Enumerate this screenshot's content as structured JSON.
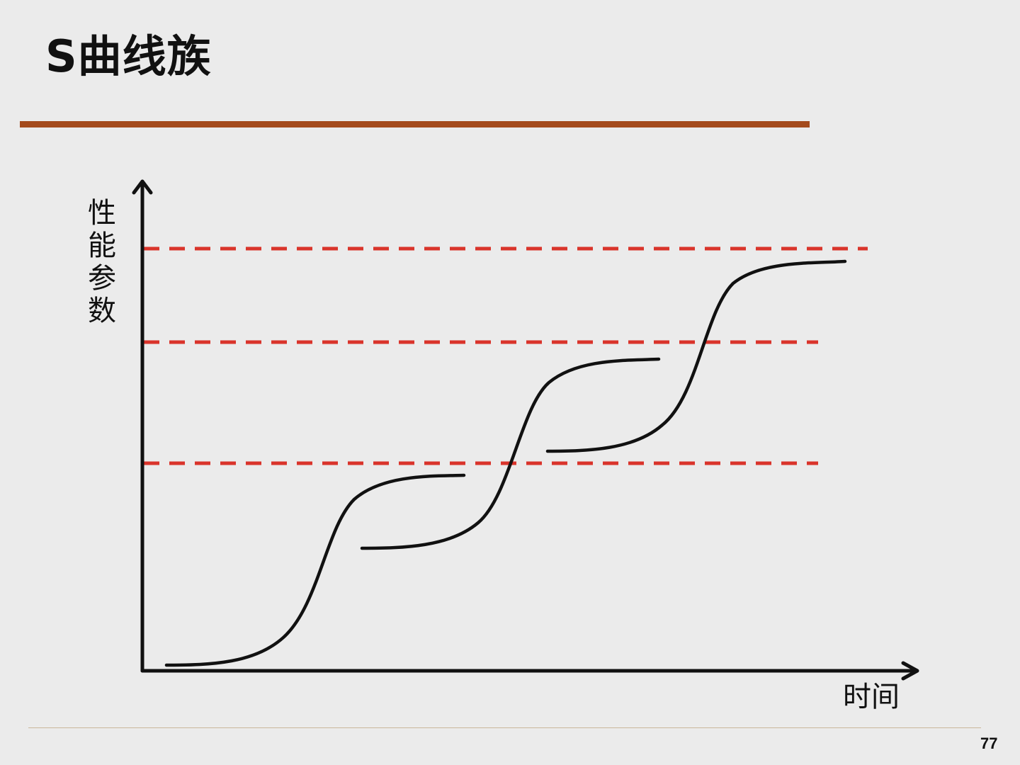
{
  "title": "S曲线族",
  "colors": {
    "title_rule": "#a44a1c",
    "dashed_lines": "#d9342b",
    "curves": "#111111",
    "axes": "#111111",
    "background": "#ebebeb"
  },
  "diagram": {
    "y_axis_label": "性能参数",
    "x_axis_label": "时间",
    "curve_count": 3,
    "limit_line_count": 3
  },
  "page_number": "77"
}
